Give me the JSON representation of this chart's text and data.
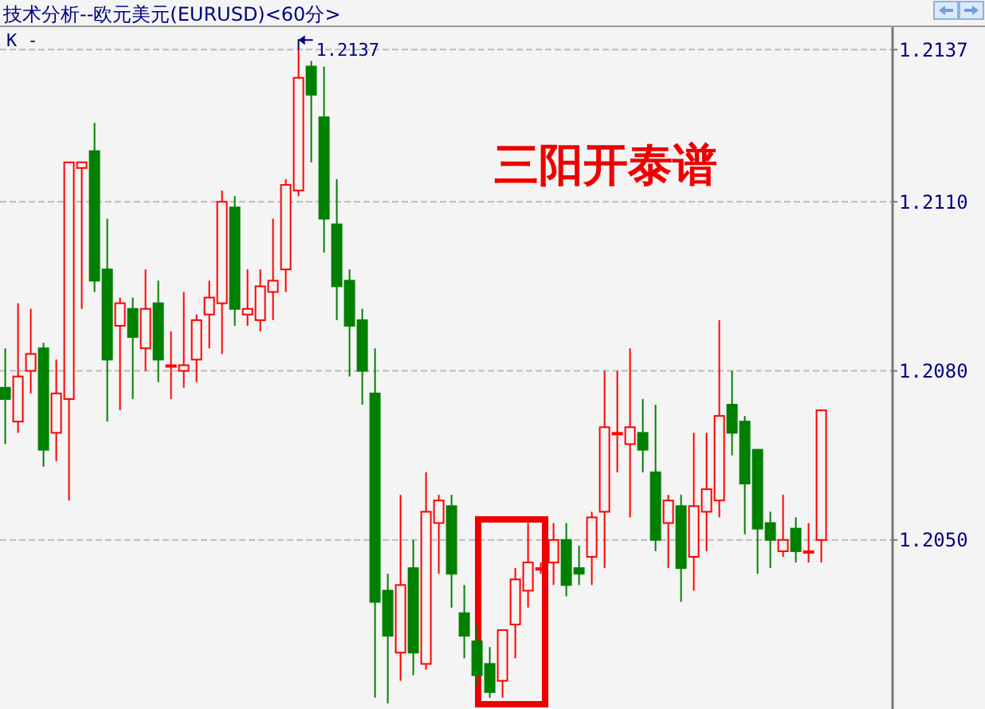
{
  "chart_data": {
    "type": "candlestick",
    "title": "技术分析--欧元美元(EURUSD)<60分>",
    "categories": [
      null,
      null,
      null,
      null,
      null,
      null,
      null,
      null,
      null,
      null,
      null,
      null,
      null,
      null,
      null,
      null,
      null,
      null,
      null,
      null,
      null,
      null,
      null,
      null,
      null,
      null,
      null,
      null,
      null,
      null,
      null,
      null,
      null,
      null,
      null,
      null,
      null,
      null,
      null,
      null,
      null,
      null,
      null,
      null,
      null,
      null,
      null,
      null,
      null,
      null,
      null,
      null,
      null,
      null,
      null,
      null,
      null,
      null,
      null,
      null,
      null,
      null,
      null,
      null,
      null
    ],
    "ohlc": [
      [
        1.2077,
        1.2084,
        1.2067,
        1.2075
      ],
      [
        1.2071,
        1.2092,
        1.2069,
        1.2079
      ],
      [
        1.208,
        1.2091,
        1.2076,
        1.2083
      ],
      [
        1.2084,
        1.2085,
        1.2063,
        1.2066
      ],
      [
        1.2069,
        1.2082,
        1.2064,
        1.2076
      ],
      [
        1.2075,
        1.2117,
        1.2057,
        1.2117
      ],
      [
        1.2116,
        1.2117,
        1.2091,
        1.2117
      ],
      [
        1.2119,
        1.2124,
        1.2094,
        1.2096
      ],
      [
        1.2098,
        1.2107,
        1.2071,
        1.2082
      ],
      [
        1.2088,
        1.2093,
        1.2073,
        1.2092
      ],
      [
        1.2091,
        1.2093,
        1.2075,
        1.2086
      ],
      [
        1.2084,
        1.2098,
        1.208,
        1.2091
      ],
      [
        1.2092,
        1.2096,
        1.2078,
        1.2082
      ],
      [
        1.2081,
        1.2087,
        1.2075,
        1.2081
      ],
      [
        1.208,
        1.2094,
        1.2077,
        1.2081
      ],
      [
        1.2082,
        1.209,
        1.2078,
        1.2089
      ],
      [
        1.209,
        1.2096,
        1.2084,
        1.2093
      ],
      [
        1.2092,
        1.2112,
        1.2083,
        1.211
      ],
      [
        1.2109,
        1.2111,
        1.2088,
        1.2091
      ],
      [
        1.209,
        1.2098,
        1.2088,
        1.2091
      ],
      [
        1.2089,
        1.2098,
        1.2087,
        1.2095
      ],
      [
        1.2094,
        1.2107,
        1.2089,
        1.2096
      ],
      [
        1.2098,
        1.2114,
        1.2094,
        1.2113
      ],
      [
        1.2112,
        1.2137,
        1.2111,
        1.2132
      ],
      [
        1.2134,
        1.2135,
        1.2117,
        1.2129
      ],
      [
        1.2125,
        1.2134,
        1.2101,
        1.2107
      ],
      [
        1.2106,
        1.2114,
        1.2089,
        1.2095
      ],
      [
        1.2096,
        1.2098,
        1.2079,
        1.2088
      ],
      [
        1.2089,
        1.2091,
        1.2074,
        1.208
      ],
      [
        1.2076,
        1.2084,
        1.2022,
        1.2039
      ],
      [
        1.2041,
        1.2044,
        1.2021,
        1.2033
      ],
      [
        1.203,
        1.2058,
        1.2025,
        1.2042
      ],
      [
        1.2045,
        1.205,
        1.2026,
        1.203
      ],
      [
        1.2028,
        1.2062,
        1.2027,
        1.2055
      ],
      [
        1.2053,
        1.2058,
        1.2044,
        1.2057
      ],
      [
        1.2056,
        1.2058,
        1.2038,
        1.2044
      ],
      [
        1.2037,
        1.2042,
        1.2029,
        1.2033
      ],
      [
        1.2032,
        1.2035,
        1.2024,
        1.2026
      ],
      [
        1.2028,
        1.2031,
        1.2022,
        1.2023
      ],
      [
        1.2025,
        1.2034,
        1.2022,
        1.2034
      ],
      [
        1.2035,
        1.2045,
        1.2029,
        1.2043
      ],
      [
        1.2041,
        1.2053,
        1.2038,
        1.2046
      ],
      [
        1.2045,
        1.2046,
        1.2044,
        1.2045
      ],
      [
        1.2046,
        1.2053,
        1.2042,
        1.205
      ],
      [
        1.205,
        1.2053,
        1.204,
        1.2042
      ],
      [
        1.2045,
        1.2049,
        1.2042,
        1.2044
      ],
      [
        1.2047,
        1.2055,
        1.2042,
        1.2054
      ],
      [
        1.2055,
        1.208,
        1.2045,
        1.207
      ],
      [
        1.2069,
        1.208,
        1.2062,
        1.2069
      ],
      [
        1.2067,
        1.2084,
        1.2054,
        1.207
      ],
      [
        1.2069,
        1.2075,
        1.2062,
        1.2066
      ],
      [
        1.2062,
        1.2074,
        1.2048,
        1.205
      ],
      [
        1.2053,
        1.2058,
        1.2045,
        1.2057
      ],
      [
        1.2056,
        1.2058,
        1.2039,
        1.2045
      ],
      [
        1.2047,
        1.2069,
        1.2041,
        1.2056
      ],
      [
        1.2055,
        1.2069,
        1.2048,
        1.2059
      ],
      [
        1.2057,
        1.2089,
        1.2054,
        1.2072
      ],
      [
        1.2074,
        1.208,
        1.2065,
        1.2069
      ],
      [
        1.2071,
        1.2072,
        1.2051,
        1.206
      ],
      [
        1.2066,
        1.2066,
        1.2044,
        1.2052
      ],
      [
        1.2053,
        1.2055,
        1.2045,
        1.205
      ],
      [
        1.2048,
        1.2058,
        1.2047,
        1.205
      ],
      [
        1.2052,
        1.2054,
        1.2046,
        1.2048
      ],
      [
        1.2048,
        1.2053,
        1.2046,
        1.2048
      ],
      [
        1.205,
        1.2073,
        1.2046,
        1.2073
      ]
    ],
    "colors": [
      "#008000",
      "#ff0000",
      "#ff0000",
      "#008000",
      "#ff0000",
      "#ff0000",
      "#ff0000",
      "#008000",
      "#008000",
      "#ff0000",
      "#008000",
      "#ff0000",
      "#008000",
      "#ff0000",
      "#ff0000",
      "#ff0000",
      "#ff0000",
      "#ff0000",
      "#008000",
      "#ff0000",
      "#ff0000",
      "#ff0000",
      "#ff0000",
      "#ff0000",
      "#008000",
      "#008000",
      "#008000",
      "#008000",
      "#008000",
      "#008000",
      "#008000",
      "#ff0000",
      "#008000",
      "#ff0000",
      "#ff0000",
      "#008000",
      "#008000",
      "#008000",
      "#008000",
      "#ff0000",
      "#ff0000",
      "#ff0000",
      "#ff0000",
      "#ff0000",
      "#008000",
      "#008000",
      "#ff0000",
      "#ff0000",
      "#ff0000",
      "#ff0000",
      "#008000",
      "#008000",
      "#ff0000",
      "#008000",
      "#ff0000",
      "#ff0000",
      "#ff0000",
      "#008000",
      "#008000",
      "#008000",
      "#008000",
      "#ff0000",
      "#008000",
      "#ff0000",
      "#ff0000"
    ],
    "ylim": [
      1.202,
      1.2141
    ],
    "yticks": [
      {
        "value": 1.205,
        "label": "1.2050"
      },
      {
        "value": 1.208,
        "label": "1.2080"
      },
      {
        "value": 1.211,
        "label": "1.2110"
      },
      1.2137
    ],
    "grid": "y",
    "annotations": [
      "K -",
      "1.2137",
      "三阳开泰谱"
    ]
  }
}
